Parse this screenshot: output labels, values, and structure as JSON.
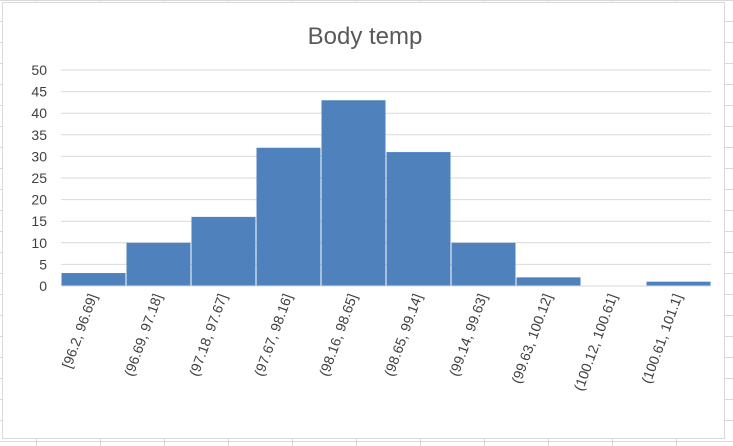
{
  "chart_data": {
    "type": "bar",
    "title": "Body temp",
    "xlabel": "",
    "ylabel": "",
    "categories": [
      "[96.2, 96.69]",
      "(96.69, 97.18]",
      "(97.18, 97.67]",
      "(97.67, 98.16]",
      "(98.16, 98.65]",
      "(98.65, 99.14]",
      "(99.14, 99.63]",
      "(99.63, 100.12]",
      "(100.12, 100.61]",
      "(100.61, 101.1]"
    ],
    "values": [
      3,
      10,
      16,
      32,
      43,
      31,
      10,
      2,
      0,
      1
    ],
    "ylim": [
      0,
      50
    ],
    "yticks": [
      0,
      5,
      10,
      15,
      20,
      25,
      30,
      35,
      40,
      45,
      50
    ],
    "grid": true,
    "bar_color": "#4f81bd",
    "gridline_color": "#d9d9d9"
  }
}
